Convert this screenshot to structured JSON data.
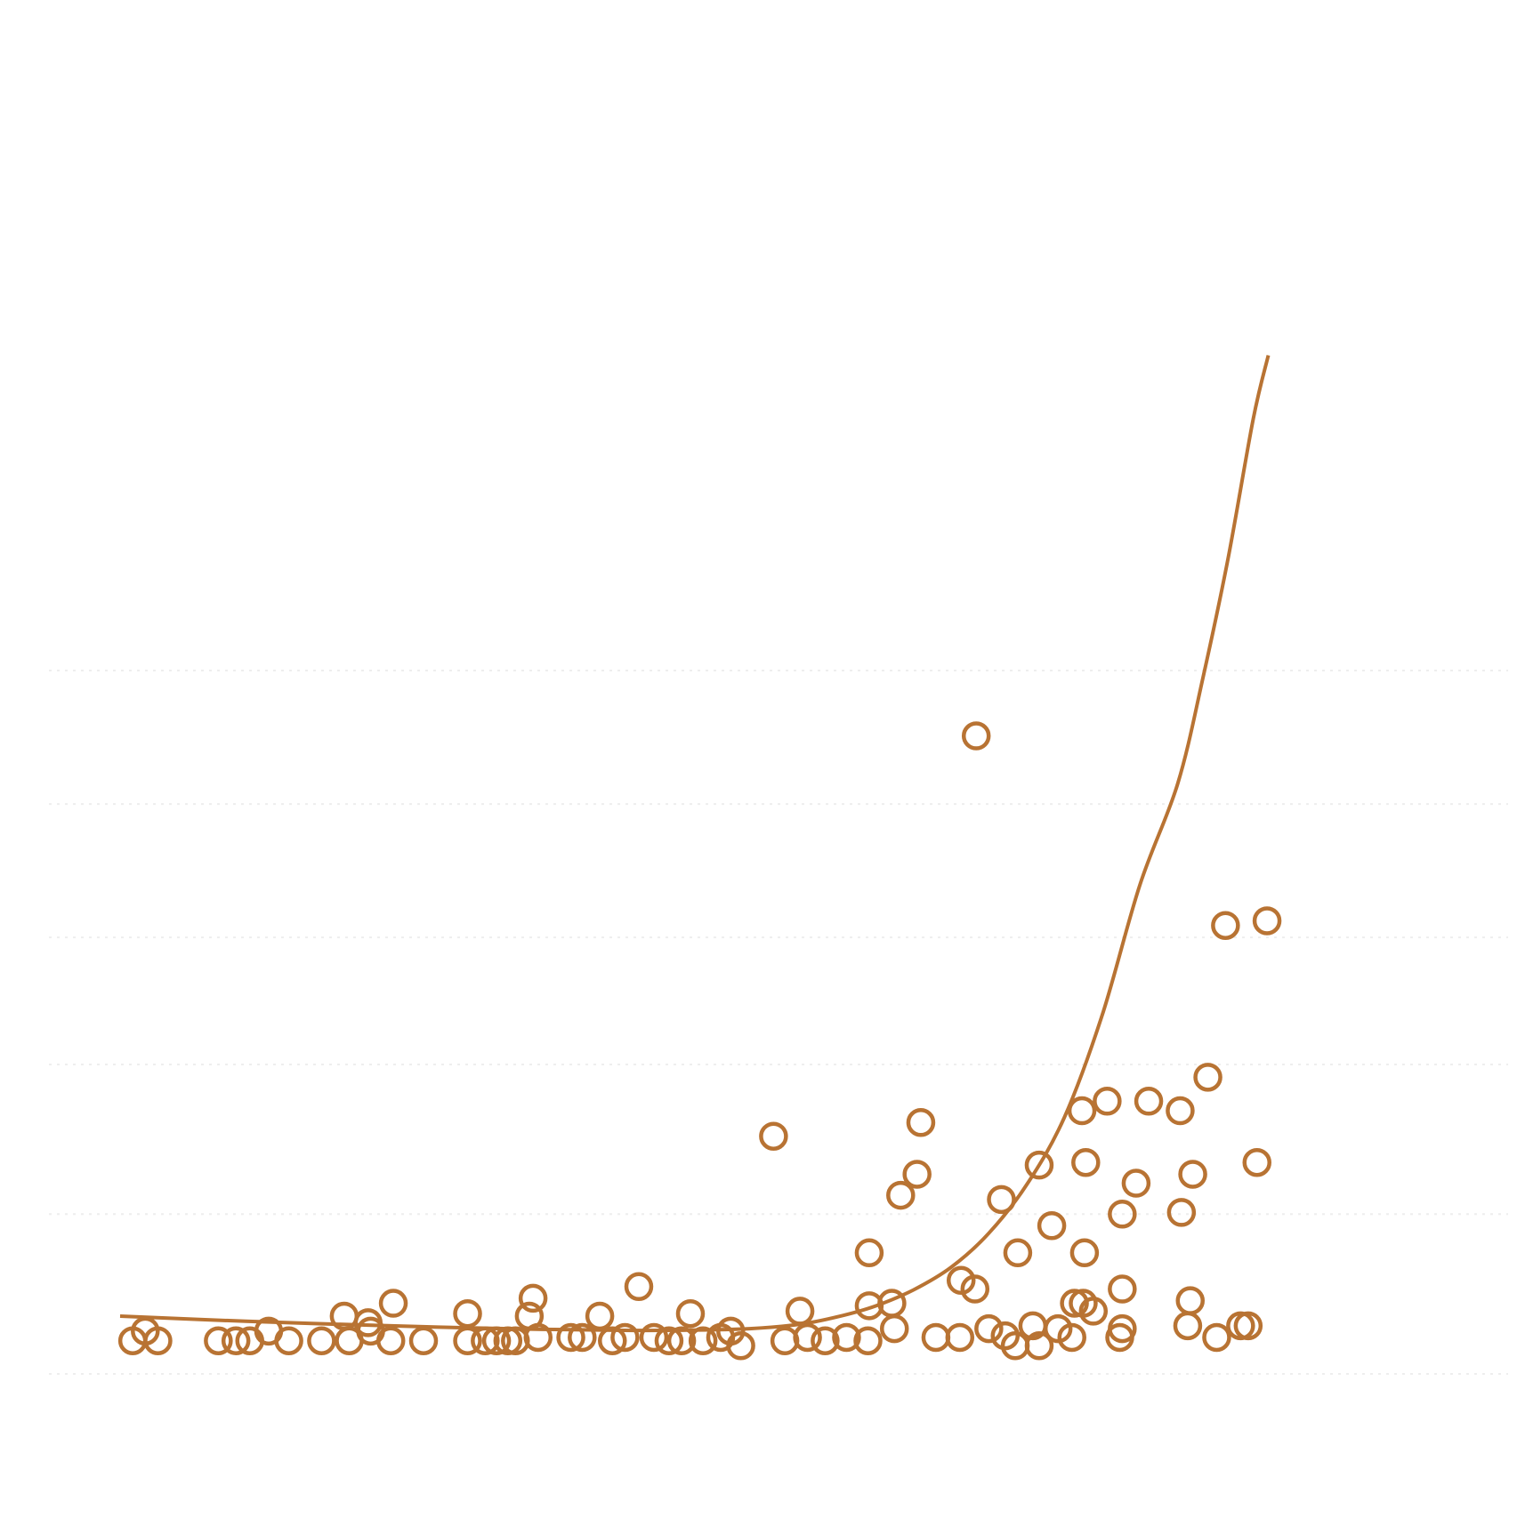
{
  "chart_data": {
    "type": "scatter",
    "title": "",
    "xlabel": "",
    "ylabel": "",
    "xlim": [
      0,
      100
    ],
    "ylim": [
      0,
      100
    ],
    "grid": true,
    "grid_y": [
      0,
      12.35,
      23.92,
      33.74,
      44.05,
      54.36
    ],
    "color": "#b87333",
    "series": [
      {
        "values": [
          [
            1.0,
            2.56
          ],
          [
            2.0,
            3.31
          ],
          [
            3.0,
            2.56
          ],
          [
            7.8,
            2.56
          ],
          [
            9.2,
            2.56
          ],
          [
            10.3,
            2.56
          ],
          [
            11.8,
            3.31
          ],
          [
            13.4,
            2.56
          ],
          [
            16.0,
            2.56
          ],
          [
            18.2,
            2.56
          ],
          [
            17.8,
            4.47
          ],
          [
            19.9,
            3.31
          ],
          [
            19.7,
            3.96
          ],
          [
            21.5,
            2.56
          ],
          [
            21.7,
            5.46
          ],
          [
            24.1,
            2.56
          ],
          [
            27.6,
            4.66
          ],
          [
            27.6,
            2.56
          ],
          [
            29.0,
            2.56
          ],
          [
            29.9,
            2.56
          ],
          [
            30.8,
            2.56
          ],
          [
            31.4,
            2.56
          ],
          [
            32.5,
            4.47
          ],
          [
            32.8,
            5.85
          ],
          [
            33.2,
            2.82
          ],
          [
            35.8,
            2.82
          ],
          [
            36.7,
            2.82
          ],
          [
            38.1,
            4.47
          ],
          [
            39.1,
            2.56
          ],
          [
            40.1,
            2.82
          ],
          [
            41.2,
            6.75
          ],
          [
            42.4,
            2.82
          ],
          [
            43.6,
            2.56
          ],
          [
            44.6,
            2.56
          ],
          [
            45.3,
            4.66
          ],
          [
            46.3,
            2.56
          ],
          [
            47.7,
            2.82
          ],
          [
            48.5,
            3.31
          ],
          [
            49.3,
            2.18
          ],
          [
            51.9,
            18.37
          ],
          [
            52.8,
            2.56
          ],
          [
            54.0,
            4.85
          ],
          [
            54.6,
            2.82
          ],
          [
            56.0,
            2.56
          ],
          [
            57.7,
            2.82
          ],
          [
            59.4,
            2.56
          ],
          [
            59.5,
            5.27
          ],
          [
            59.5,
            9.36
          ],
          [
            61.3,
            5.46
          ],
          [
            61.5,
            3.5
          ],
          [
            62.0,
            13.81
          ],
          [
            63.3,
            15.43
          ],
          [
            63.6,
            19.43
          ],
          [
            64.8,
            2.82
          ],
          [
            66.7,
            2.82
          ],
          [
            66.8,
            7.23
          ],
          [
            67.9,
            6.56
          ],
          [
            68.0,
            49.31
          ],
          [
            69.0,
            3.5
          ],
          [
            70.0,
            13.48
          ],
          [
            70.3,
            2.95
          ],
          [
            71.1,
            2.18
          ],
          [
            71.3,
            9.36
          ],
          [
            72.5,
            3.72
          ],
          [
            73.0,
            2.18
          ],
          [
            73.0,
            16.14
          ],
          [
            74.0,
            11.46
          ],
          [
            74.5,
            3.5
          ],
          [
            75.6,
            2.82
          ],
          [
            75.8,
            5.46
          ],
          [
            76.4,
            20.34
          ],
          [
            76.5,
            5.46
          ],
          [
            76.6,
            9.36
          ],
          [
            76.7,
            16.34
          ],
          [
            77.3,
            4.85
          ],
          [
            78.4,
            21.08
          ],
          [
            79.4,
            2.82
          ],
          [
            79.6,
            12.35
          ],
          [
            79.6,
            3.5
          ],
          [
            79.6,
            6.56
          ],
          [
            80.7,
            14.74
          ],
          [
            81.7,
            21.08
          ],
          [
            84.2,
            20.34
          ],
          [
            84.3,
            12.48
          ],
          [
            84.8,
            3.72
          ],
          [
            85.0,
            5.66
          ],
          [
            85.2,
            15.43
          ],
          [
            86.4,
            22.93
          ],
          [
            87.8,
            34.66
          ],
          [
            87.1,
            2.82
          ],
          [
            89.0,
            3.72
          ],
          [
            89.6,
            3.72
          ],
          [
            90.3,
            16.34
          ],
          [
            91.1,
            35.02
          ]
        ]
      }
    ],
    "trendline": {
      "type": "fit",
      "values": [
        [
          0,
          4.47
        ],
        [
          10,
          4.07
        ],
        [
          20,
          3.76
        ],
        [
          30,
          3.51
        ],
        [
          40,
          3.37
        ],
        [
          45,
          3.38
        ],
        [
          50,
          3.5
        ],
        [
          54,
          3.84
        ],
        [
          57,
          4.42
        ],
        [
          60,
          5.25
        ],
        [
          63,
          6.49
        ],
        [
          66,
          8.24
        ],
        [
          69,
          10.87
        ],
        [
          72,
          14.61
        ],
        [
          75,
          19.83
        ],
        [
          78,
          27.71
        ],
        [
          81,
          37.8
        ],
        [
          84,
          45.6
        ],
        [
          86,
          53.76
        ],
        [
          88,
          63.0
        ],
        [
          90,
          73.79
        ],
        [
          91.2,
          78.72
        ]
      ]
    }
  }
}
